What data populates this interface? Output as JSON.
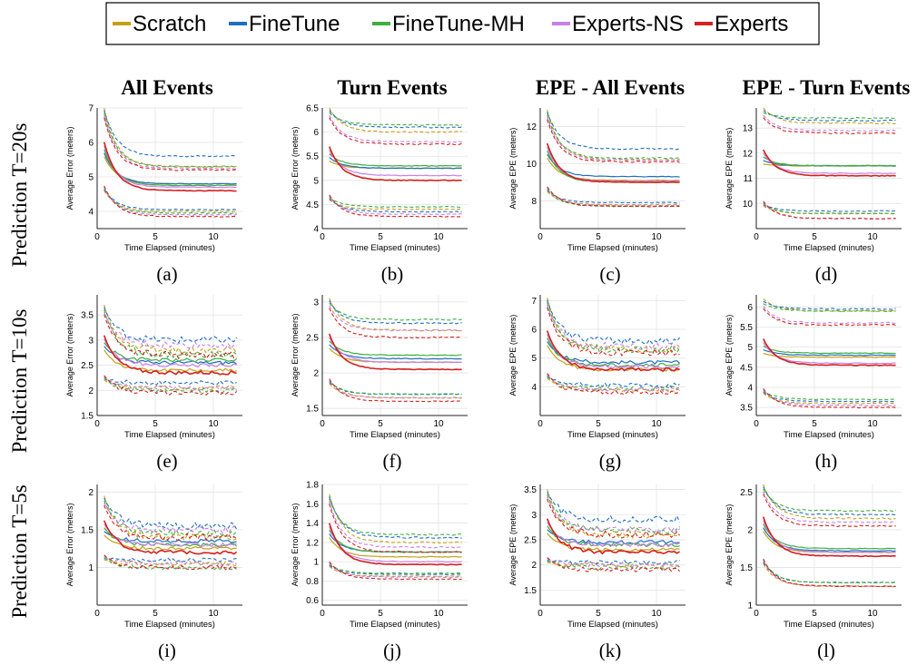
{
  "legend": {
    "entries": [
      {
        "name": "Scratch",
        "color": "#c5a017"
      },
      {
        "name": "FineTune",
        "color": "#1f6fbf"
      },
      {
        "name": "FineTune-MH",
        "color": "#3fae3f"
      },
      {
        "name": "Experts-NS",
        "color": "#c680e8"
      },
      {
        "name": "Experts",
        "color": "#d42020"
      }
    ]
  },
  "columns": [
    "All Events",
    "Turn Events",
    "EPE - All Events",
    "EPE - Turn Events"
  ],
  "rows": [
    "Prediction T=20s",
    "Prediction T=10s",
    "Prediction T=5s"
  ],
  "chart_data": [
    {
      "type": "line",
      "sublabel": "(a)",
      "xlabel": "Time Elapsed (minutes)",
      "ylabel": "Average Error (meters)",
      "xlim": [
        0,
        12.5
      ],
      "ylim": [
        3.5,
        7
      ],
      "xticks": [
        0,
        5,
        10
      ],
      "yticks": [
        4,
        5,
        6,
        7
      ],
      "start": [
        7.0,
        4.6
      ],
      "solid": [
        4.8,
        4.8,
        4.75,
        4.7,
        4.6
      ],
      "upper": [
        5.3,
        5.6,
        5.3,
        5.25,
        5.2
      ],
      "lower": [
        4.0,
        4.05,
        3.95,
        3.9,
        3.85
      ]
    },
    {
      "type": "line",
      "sublabel": "(b)",
      "xlabel": "Time Elapsed (minutes)",
      "ylabel": "Average Error (meters)",
      "xlim": [
        0,
        12.5
      ],
      "ylim": [
        4,
        6.5
      ],
      "xticks": [
        0,
        5,
        10
      ],
      "yticks": [
        4,
        4.5,
        5,
        5.5,
        6,
        6.5
      ],
      "start": [
        6.5,
        4.6
      ],
      "solid": [
        5.25,
        5.25,
        5.3,
        5.1,
        5.0
      ],
      "upper": [
        6.0,
        6.1,
        6.15,
        5.8,
        5.75
      ],
      "lower": [
        4.4,
        4.35,
        4.45,
        4.3,
        4.25
      ]
    },
    {
      "type": "line",
      "sublabel": "(c)",
      "xlabel": "Time Elapsed (minutes)",
      "ylabel": "Average EPE (meters)",
      "xlim": [
        0,
        12.5
      ],
      "ylim": [
        6.5,
        13
      ],
      "xticks": [
        0,
        5,
        10
      ],
      "yticks": [
        8,
        10,
        12
      ],
      "start": [
        12.9,
        8.5
      ],
      "solid": [
        9.1,
        9.3,
        9.0,
        9.05,
        9.0
      ],
      "upper": [
        10.2,
        10.8,
        10.3,
        10.2,
        10.1
      ],
      "lower": [
        7.8,
        7.9,
        7.7,
        7.75,
        7.7
      ]
    },
    {
      "type": "line",
      "sublabel": "(d)",
      "xlabel": "Time Elapsed (minutes)",
      "ylabel": "Average EPE (meters)",
      "xlim": [
        0,
        12.5
      ],
      "ylim": [
        9,
        13.8
      ],
      "xticks": [
        0,
        5,
        10
      ],
      "yticks": [
        10,
        11,
        12,
        13
      ],
      "start": [
        13.8,
        9.9
      ],
      "solid": [
        11.5,
        11.5,
        11.5,
        11.2,
        11.1
      ],
      "upper": [
        13.2,
        13.3,
        13.4,
        12.9,
        12.8
      ],
      "lower": [
        9.6,
        9.7,
        9.6,
        9.4,
        9.4
      ]
    },
    {
      "type": "line",
      "sublabel": "(e)",
      "xlabel": "Time Elapsed (minutes)",
      "ylabel": "Average Error (meters)",
      "xlim": [
        0,
        12.5
      ],
      "ylim": [
        1.5,
        3.9
      ],
      "xticks": [
        0,
        5,
        10
      ],
      "yticks": [
        1.5,
        2,
        2.5,
        3,
        3.5
      ],
      "start": [
        3.7,
        2.2
      ],
      "solid": [
        2.4,
        2.55,
        2.6,
        2.5,
        2.35
      ],
      "upper": [
        2.8,
        3.0,
        2.7,
        2.9,
        2.7
      ],
      "lower": [
        2.05,
        2.15,
        2.0,
        2.05,
        1.95
      ]
    },
    {
      "type": "line",
      "sublabel": "(f)",
      "xlabel": "Time Elapsed (minutes)",
      "ylabel": "Average Error (meters)",
      "xlim": [
        0,
        12.5
      ],
      "ylim": [
        1.4,
        3.1
      ],
      "xticks": [
        0,
        5,
        10
      ],
      "yticks": [
        1.5,
        2,
        2.5,
        3
      ],
      "start": [
        3.05,
        1.85
      ],
      "solid": [
        2.15,
        2.2,
        2.25,
        2.15,
        2.05
      ],
      "upper": [
        2.6,
        2.7,
        2.75,
        2.6,
        2.5
      ],
      "lower": [
        1.65,
        1.7,
        1.7,
        1.65,
        1.6
      ]
    },
    {
      "type": "line",
      "sublabel": "(g)",
      "xlabel": "Time Elapsed (minutes)",
      "ylabel": "Average EPE (meters)",
      "xlim": [
        0,
        12.5
      ],
      "ylim": [
        3,
        7.2
      ],
      "xticks": [
        0,
        5,
        10
      ],
      "yticks": [
        4,
        5,
        6,
        7
      ],
      "start": [
        7.1,
        4.3
      ],
      "solid": [
        4.6,
        4.85,
        4.75,
        4.7,
        4.6
      ],
      "upper": [
        5.3,
        5.6,
        5.3,
        5.4,
        5.2
      ],
      "lower": [
        3.9,
        4.05,
        3.95,
        3.9,
        3.8
      ]
    },
    {
      "type": "line",
      "sublabel": "(h)",
      "xlabel": "Time Elapsed (minutes)",
      "ylabel": "Average EPE (meters)",
      "xlim": [
        0,
        12.5
      ],
      "ylim": [
        3.3,
        6.3
      ],
      "xticks": [
        0,
        5,
        10
      ],
      "yticks": [
        3.5,
        4,
        4.5,
        5,
        5.5,
        6
      ],
      "start": [
        6.2,
        3.85
      ],
      "solid": [
        4.75,
        4.8,
        4.85,
        4.6,
        4.55
      ],
      "upper": [
        5.9,
        5.95,
        5.9,
        5.6,
        5.55
      ],
      "lower": [
        3.6,
        3.65,
        3.7,
        3.55,
        3.5
      ]
    },
    {
      "type": "line",
      "sublabel": "(i)",
      "xlabel": "Time Elapsed (minutes)",
      "ylabel": "Average Error (meters)",
      "xlim": [
        0,
        12.5
      ],
      "ylim": [
        0.5,
        2.1
      ],
      "xticks": [
        0,
        5,
        10
      ],
      "yticks": [
        1,
        1.5,
        2
      ],
      "start": [
        1.95,
        1.1
      ],
      "solid": [
        1.25,
        1.35,
        1.3,
        1.3,
        1.2
      ],
      "upper": [
        1.4,
        1.55,
        1.45,
        1.5,
        1.4
      ],
      "lower": [
        1.05,
        1.1,
        1.0,
        1.05,
        1.0
      ]
    },
    {
      "type": "line",
      "sublabel": "(j)",
      "xlabel": "Time Elapsed (minutes)",
      "ylabel": "Average Error (meters)",
      "xlim": [
        0,
        12.5
      ],
      "ylim": [
        0.55,
        1.8
      ],
      "xticks": [
        0,
        5,
        10
      ],
      "yticks": [
        0.6,
        0.8,
        1,
        1.2,
        1.4,
        1.6,
        1.8
      ],
      "start": [
        1.7,
        0.95
      ],
      "solid": [
        1.05,
        1.1,
        1.1,
        1.0,
        0.97
      ],
      "upper": [
        1.2,
        1.25,
        1.28,
        1.15,
        1.1
      ],
      "lower": [
        0.85,
        0.87,
        0.88,
        0.84,
        0.82
      ]
    },
    {
      "type": "line",
      "sublabel": "(k)",
      "xlabel": "Time Elapsed (minutes)",
      "ylabel": "Average EPE (meters)",
      "xlim": [
        0,
        12.5
      ],
      "ylim": [
        1.2,
        3.6
      ],
      "xticks": [
        0,
        5,
        10
      ],
      "yticks": [
        1.5,
        2,
        2.5,
        3,
        3.5
      ],
      "start": [
        3.5,
        2.05
      ],
      "solid": [
        2.3,
        2.45,
        2.4,
        2.4,
        2.25
      ],
      "upper": [
        2.6,
        2.9,
        2.7,
        2.7,
        2.6
      ],
      "lower": [
        2.0,
        2.05,
        1.95,
        2.0,
        1.9
      ]
    },
    {
      "type": "line",
      "sublabel": "(l)",
      "xlabel": "Time Elapsed (minutes)",
      "ylabel": "Average EPE (meters)",
      "xlim": [
        0,
        12.5
      ],
      "ylim": [
        1,
        2.6
      ],
      "xticks": [
        0,
        5,
        10
      ],
      "yticks": [
        1,
        1.5,
        2,
        2.5
      ],
      "start": [
        2.6,
        1.55
      ],
      "solid": [
        1.7,
        1.72,
        1.75,
        1.7,
        1.65
      ],
      "upper": [
        2.15,
        2.2,
        2.25,
        2.1,
        2.05
      ],
      "lower": [
        1.25,
        1.3,
        1.3,
        1.25,
        1.25
      ]
    }
  ]
}
